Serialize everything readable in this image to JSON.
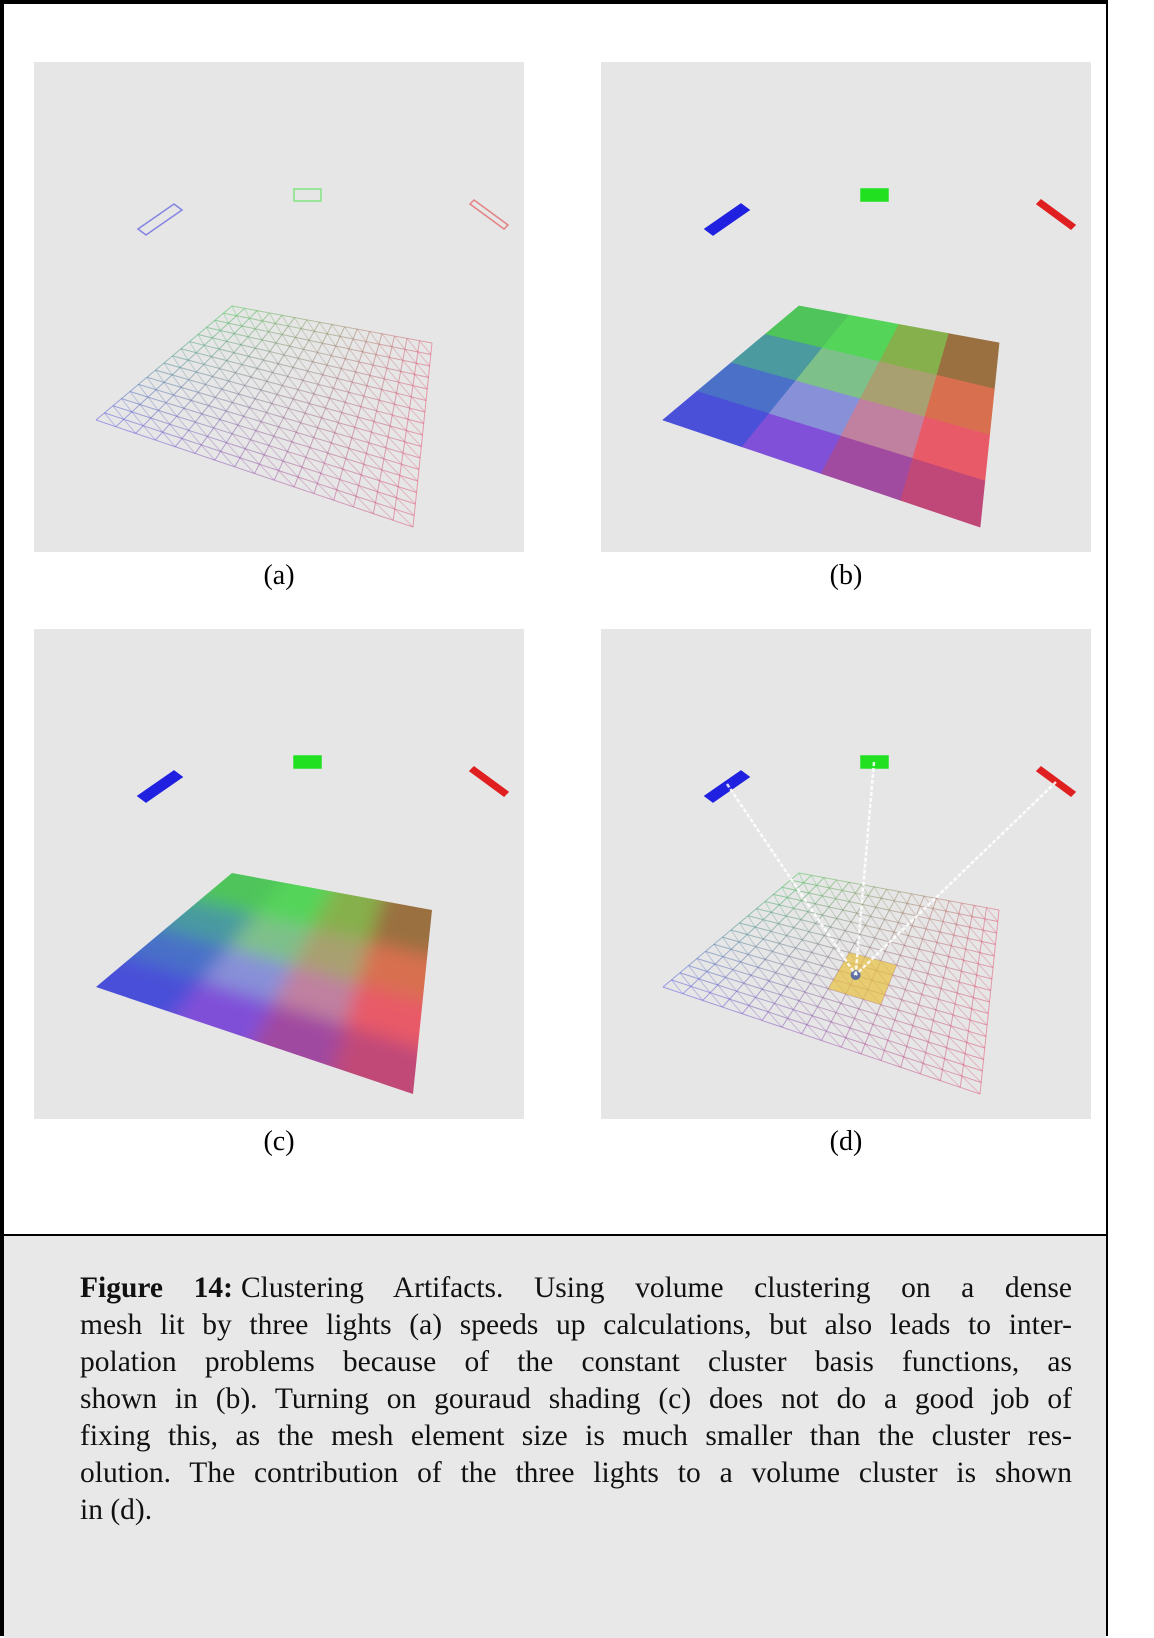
{
  "panels": [
    {
      "label": "(a)"
    },
    {
      "label": "(b)"
    },
    {
      "label": "(c)"
    },
    {
      "label": "(d)"
    }
  ],
  "caption": {
    "label": "Figure 14:",
    "lines": [
      "Clustering Artifacts. Using volume clustering on a dense",
      "mesh lit by three lights (a) speeds up calculations, but also leads to inter-",
      "polation problems because of the constant cluster basis functions, as",
      "shown in (b). Turning on gouraud shading (c) does not do a good job of",
      "fixing this, as the mesh element size is much smaller than the cluster res-",
      "olution. The contribution of the three lights to a volume cluster is shown",
      "in (d)."
    ]
  }
}
